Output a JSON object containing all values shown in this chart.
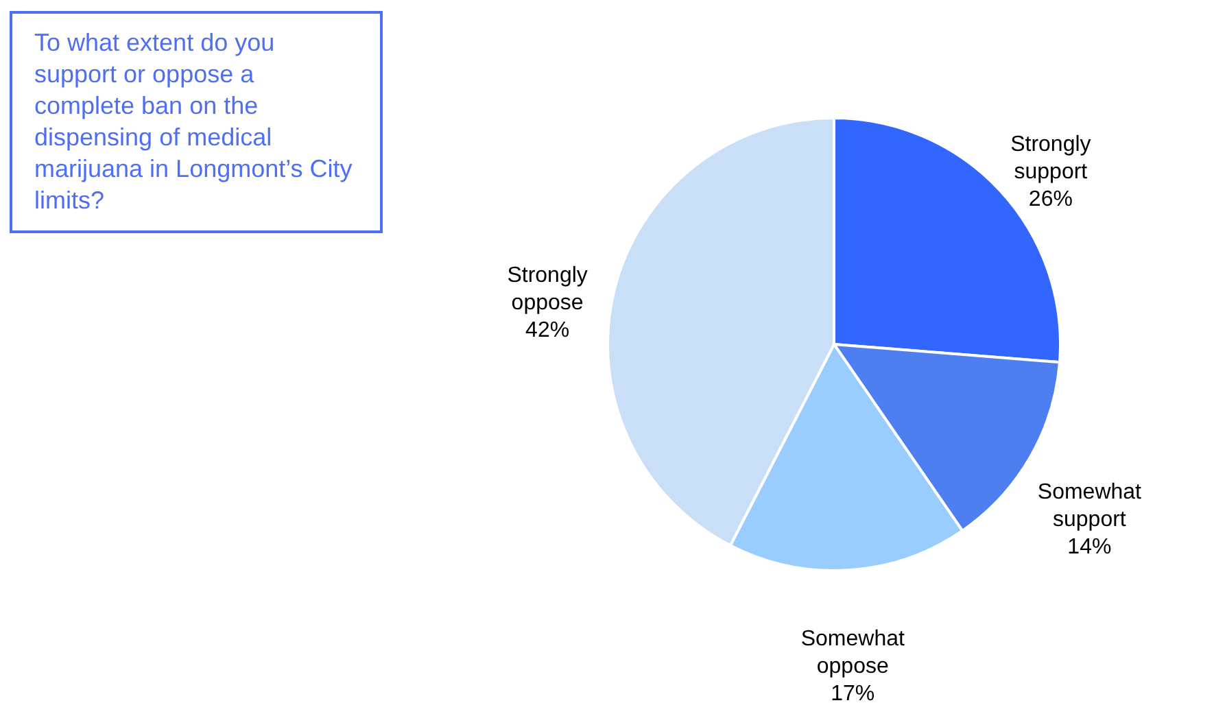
{
  "chart_data": {
    "type": "pie",
    "title": "To what extent do you support or oppose a complete ban on the dispensing of medical marijuana in Longmont’s City limits?",
    "categories": [
      "Strongly support",
      "Somewhat support",
      "Somewhat oppose",
      "Strongly oppose"
    ],
    "values": [
      26,
      14,
      17,
      42
    ],
    "value_labels": [
      "26%",
      "14%",
      "17%",
      "42%"
    ],
    "colors": [
      "#3366ff",
      "#4d7ff0",
      "#99ccff",
      "#c9dff7"
    ]
  }
}
